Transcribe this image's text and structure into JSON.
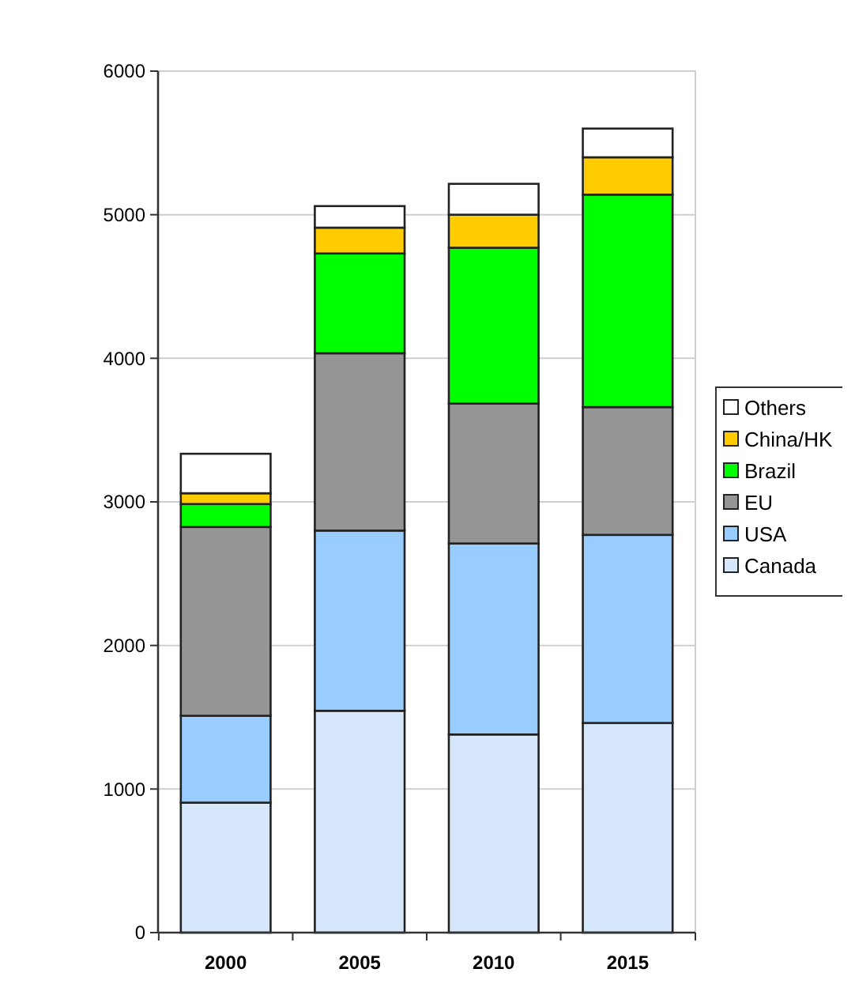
{
  "chart_data": {
    "type": "bar",
    "stacked": true,
    "categories": [
      "2000",
      "2005",
      "2010",
      "2015"
    ],
    "series": [
      {
        "name": "Canada",
        "color": "#d6e6fb",
        "values": [
          905,
          1545,
          1380,
          1460
        ]
      },
      {
        "name": "USA",
        "color": "#99ccff",
        "values": [
          605,
          1255,
          1330,
          1310
        ]
      },
      {
        "name": "EU",
        "color": "#969696",
        "values": [
          1315,
          1235,
          975,
          890
        ]
      },
      {
        "name": "Brazil",
        "color": "#00ff00",
        "values": [
          160,
          695,
          1085,
          1480
        ]
      },
      {
        "name": "China/HK",
        "color": "#ffcc00",
        "values": [
          75,
          180,
          230,
          260
        ]
      },
      {
        "name": "Others",
        "color": "#ffffff",
        "values": [
          275,
          150,
          215,
          200
        ]
      }
    ],
    "ylim": [
      0,
      6000
    ],
    "yticks": [
      0,
      1000,
      2000,
      3000,
      4000,
      5000,
      6000
    ],
    "grid": "y",
    "legend": "right"
  }
}
